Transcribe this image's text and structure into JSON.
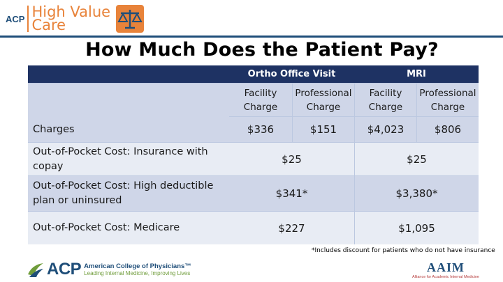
{
  "header": {
    "logo_acp": "ACP",
    "logo_line1": "High Value",
    "logo_line2": "Care"
  },
  "title": "How Much Does the Patient Pay?",
  "table": {
    "groups": [
      "Ortho Office Visit",
      "MRI"
    ],
    "subheaders": [
      "Facility Charge",
      "Professional Charge",
      "Facility Charge",
      "Professional Charge"
    ],
    "charges_label": "Charges",
    "charges": [
      "$336",
      "$151",
      "$4,023",
      "$806"
    ],
    "rows": [
      {
        "label": "Out-of-Pocket Cost: Insurance with copay",
        "ortho": "$25",
        "mri": "$25"
      },
      {
        "label": "Out-of-Pocket Cost: High deductible plan or uninsured",
        "ortho": "$341*",
        "mri": "$3,380*"
      },
      {
        "label": "Out-of-Pocket Cost: Medicare",
        "ortho": "$227",
        "mri": "$1,095"
      }
    ]
  },
  "footnote": "*Includes discount for patients who do not have insurance",
  "footer": {
    "acp_logo": "ACP",
    "acp_name": "American College of Physicians™",
    "acp_tagline": "Leading Internal Medicine, Improving Lives",
    "aaim_logo": "AAIM",
    "aaim_tagline": "Alliance for Academic Internal Medicine"
  },
  "colors": {
    "header_navy": "#1e3263",
    "band_dark": "#cfd6e8",
    "band_light": "#e8ecf4",
    "brand_orange": "#e8833a",
    "brand_blue": "#1f4e79"
  }
}
